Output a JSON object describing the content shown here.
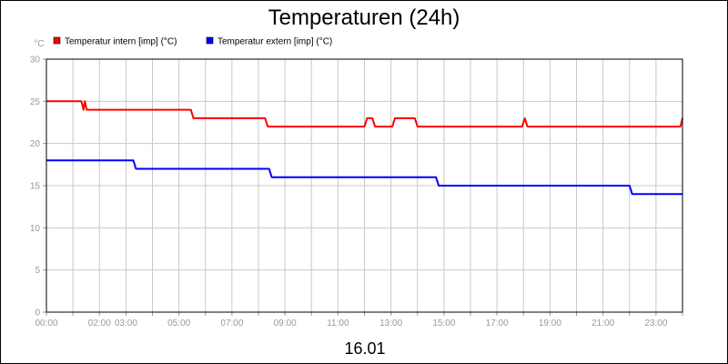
{
  "chart_data": {
    "type": "line",
    "title": "Temperaturen (24h)",
    "xlabel": "16.01",
    "ylabel": "°C",
    "xlim": [
      0,
      24
    ],
    "ylim": [
      0,
      30
    ],
    "yticks": [
      0,
      5,
      10,
      15,
      20,
      25,
      30
    ],
    "xtick_labels": [
      {
        "x": 0,
        "label": "00:00"
      },
      {
        "x": 2,
        "label": "02:00"
      },
      {
        "x": 3,
        "label": "03:00"
      },
      {
        "x": 5,
        "label": "05:00"
      },
      {
        "x": 7,
        "label": "07:00"
      },
      {
        "x": 9,
        "label": "09:00"
      },
      {
        "x": 11,
        "label": "11:00"
      },
      {
        "x": 13,
        "label": "13:00"
      },
      {
        "x": 15,
        "label": "15:00"
      },
      {
        "x": 17,
        "label": "17:00"
      },
      {
        "x": 19,
        "label": "19:00"
      },
      {
        "x": 21,
        "label": "21:00"
      },
      {
        "x": 23,
        "label": "23:00"
      }
    ],
    "grid": true,
    "legend_position": "top-left",
    "series": [
      {
        "name": "Temperatur intern [imp] (°C)",
        "color": "#ff0000",
        "points": [
          [
            0,
            25
          ],
          [
            1.32,
            25
          ],
          [
            1.4,
            24
          ],
          [
            1.45,
            25
          ],
          [
            1.52,
            24
          ],
          [
            5.45,
            24
          ],
          [
            5.55,
            23
          ],
          [
            8.25,
            23
          ],
          [
            8.35,
            22
          ],
          [
            12.0,
            22
          ],
          [
            12.1,
            23
          ],
          [
            12.3,
            23
          ],
          [
            12.4,
            22
          ],
          [
            13.05,
            22
          ],
          [
            13.15,
            23
          ],
          [
            13.9,
            23
          ],
          [
            14.0,
            22
          ],
          [
            17.95,
            22
          ],
          [
            18.05,
            23
          ],
          [
            18.15,
            22
          ],
          [
            23.92,
            22
          ],
          [
            24,
            23
          ]
        ]
      },
      {
        "name": "Temperatur extern [imp] (°C)",
        "color": "#0000ff",
        "points": [
          [
            0,
            18
          ],
          [
            3.28,
            18
          ],
          [
            3.38,
            17
          ],
          [
            8.4,
            17
          ],
          [
            8.5,
            16
          ],
          [
            14.7,
            16
          ],
          [
            14.8,
            15
          ],
          [
            22.0,
            15
          ],
          [
            22.1,
            14
          ],
          [
            24,
            14
          ]
        ]
      }
    ]
  }
}
